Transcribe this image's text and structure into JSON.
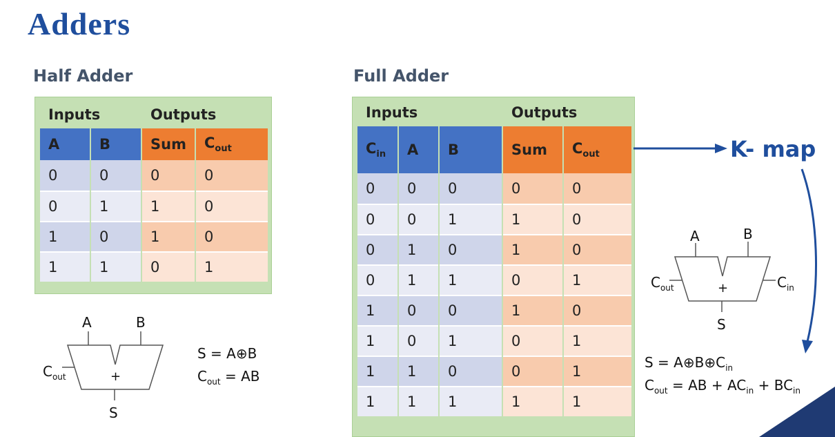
{
  "title": "Adders",
  "half_adder": {
    "heading": "Half Adder",
    "group_inputs": "Inputs",
    "group_outputs": "Outputs",
    "columns": [
      {
        "main": "A",
        "sub": "",
        "kind": "in"
      },
      {
        "main": "B",
        "sub": "",
        "kind": "in"
      },
      {
        "main": "Sum",
        "sub": "",
        "kind": "out"
      },
      {
        "main": "C",
        "sub": "out",
        "kind": "out"
      }
    ],
    "rows": [
      [
        "0",
        "0",
        "0",
        "0"
      ],
      [
        "0",
        "1",
        "1",
        "0"
      ],
      [
        "1",
        "0",
        "1",
        "0"
      ],
      [
        "1",
        "1",
        "0",
        "1"
      ]
    ],
    "symbol": {
      "a": "A",
      "b": "B",
      "cout_main": "C",
      "cout_sub": "out",
      "plus": "+",
      "s": "S"
    },
    "eq1": "S = A⊕B",
    "eq2_main": "C",
    "eq2_sub": "out",
    "eq2_rest": " = AB"
  },
  "full_adder": {
    "heading": "Full Adder",
    "group_inputs": "Inputs",
    "group_outputs": "Outputs",
    "columns": [
      {
        "main": "C",
        "sub": "in",
        "kind": "in"
      },
      {
        "main": "A",
        "sub": "",
        "kind": "in"
      },
      {
        "main": "B",
        "sub": "",
        "kind": "in"
      },
      {
        "main": "Sum",
        "sub": "",
        "kind": "out"
      },
      {
        "main": "C",
        "sub": "out",
        "kind": "out"
      }
    ],
    "rows": [
      [
        "0",
        "0",
        "0",
        "0",
        "0"
      ],
      [
        "0",
        "0",
        "1",
        "1",
        "0"
      ],
      [
        "0",
        "1",
        "0",
        "1",
        "0"
      ],
      [
        "0",
        "1",
        "1",
        "0",
        "1"
      ],
      [
        "1",
        "0",
        "0",
        "1",
        "0"
      ],
      [
        "1",
        "0",
        "1",
        "0",
        "1"
      ],
      [
        "1",
        "1",
        "0",
        "0",
        "1"
      ],
      [
        "1",
        "1",
        "1",
        "1",
        "1"
      ]
    ],
    "kmap_label": "K- map",
    "symbol": {
      "a": "A",
      "b": "B",
      "cout_main": "C",
      "cout_sub": "out",
      "cin_main": "C",
      "cin_sub": "in",
      "plus": "+",
      "s": "S"
    },
    "eq1_main": "S = A⊕B⊕C",
    "eq1_sub": "in",
    "eq2_a": "C",
    "eq2_a_sub": "out",
    "eq2_b": " = AB + AC",
    "eq2_b_sub": "in",
    "eq2_c": " + BC",
    "eq2_c_sub": "in"
  },
  "colors": {
    "title": "#1f4e9d",
    "input_header": "#4472c4",
    "output_header": "#ed7d31",
    "panel": "#c5e0b4"
  }
}
